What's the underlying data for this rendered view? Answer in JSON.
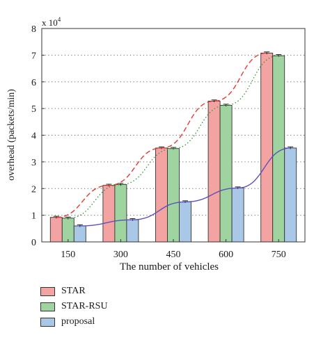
{
  "chart_data": {
    "type": "bar",
    "categories": [
      "150",
      "300",
      "450",
      "600",
      "750"
    ],
    "series": [
      {
        "name": "STAR",
        "values": [
          0.92,
          2.12,
          3.52,
          5.28,
          7.08
        ],
        "color": "#f4a3a3",
        "stroke": "#333333"
      },
      {
        "name": "STAR-RSU",
        "values": [
          0.89,
          2.15,
          3.5,
          5.12,
          6.98
        ],
        "color": "#9fd39f",
        "stroke": "#333333"
      },
      {
        "name": "proposal",
        "values": [
          0.6,
          0.83,
          1.5,
          2.02,
          3.52
        ],
        "color": "#a9c8e8",
        "stroke": "#333333"
      }
    ],
    "trend_lines": [
      {
        "series": "STAR",
        "style": "dashed",
        "color": "#e8382e"
      },
      {
        "series": "STAR-RSU",
        "style": "dotted",
        "color": "#3a9a3a"
      },
      {
        "series": "proposal",
        "style": "solid",
        "color": "#5a52b8"
      }
    ],
    "error_bars": true,
    "xlabel": "The number of vehicles",
    "ylabel": "overhead (packets/min)",
    "yscale_label": "x 10",
    "yscale_exponent": "4",
    "ylim": [
      0,
      8
    ],
    "yticks": [
      "0",
      "1",
      "2",
      "3",
      "4",
      "5",
      "6",
      "7",
      "8"
    ],
    "grid": "horizontal dotted",
    "legend_position": "bottom-left"
  }
}
